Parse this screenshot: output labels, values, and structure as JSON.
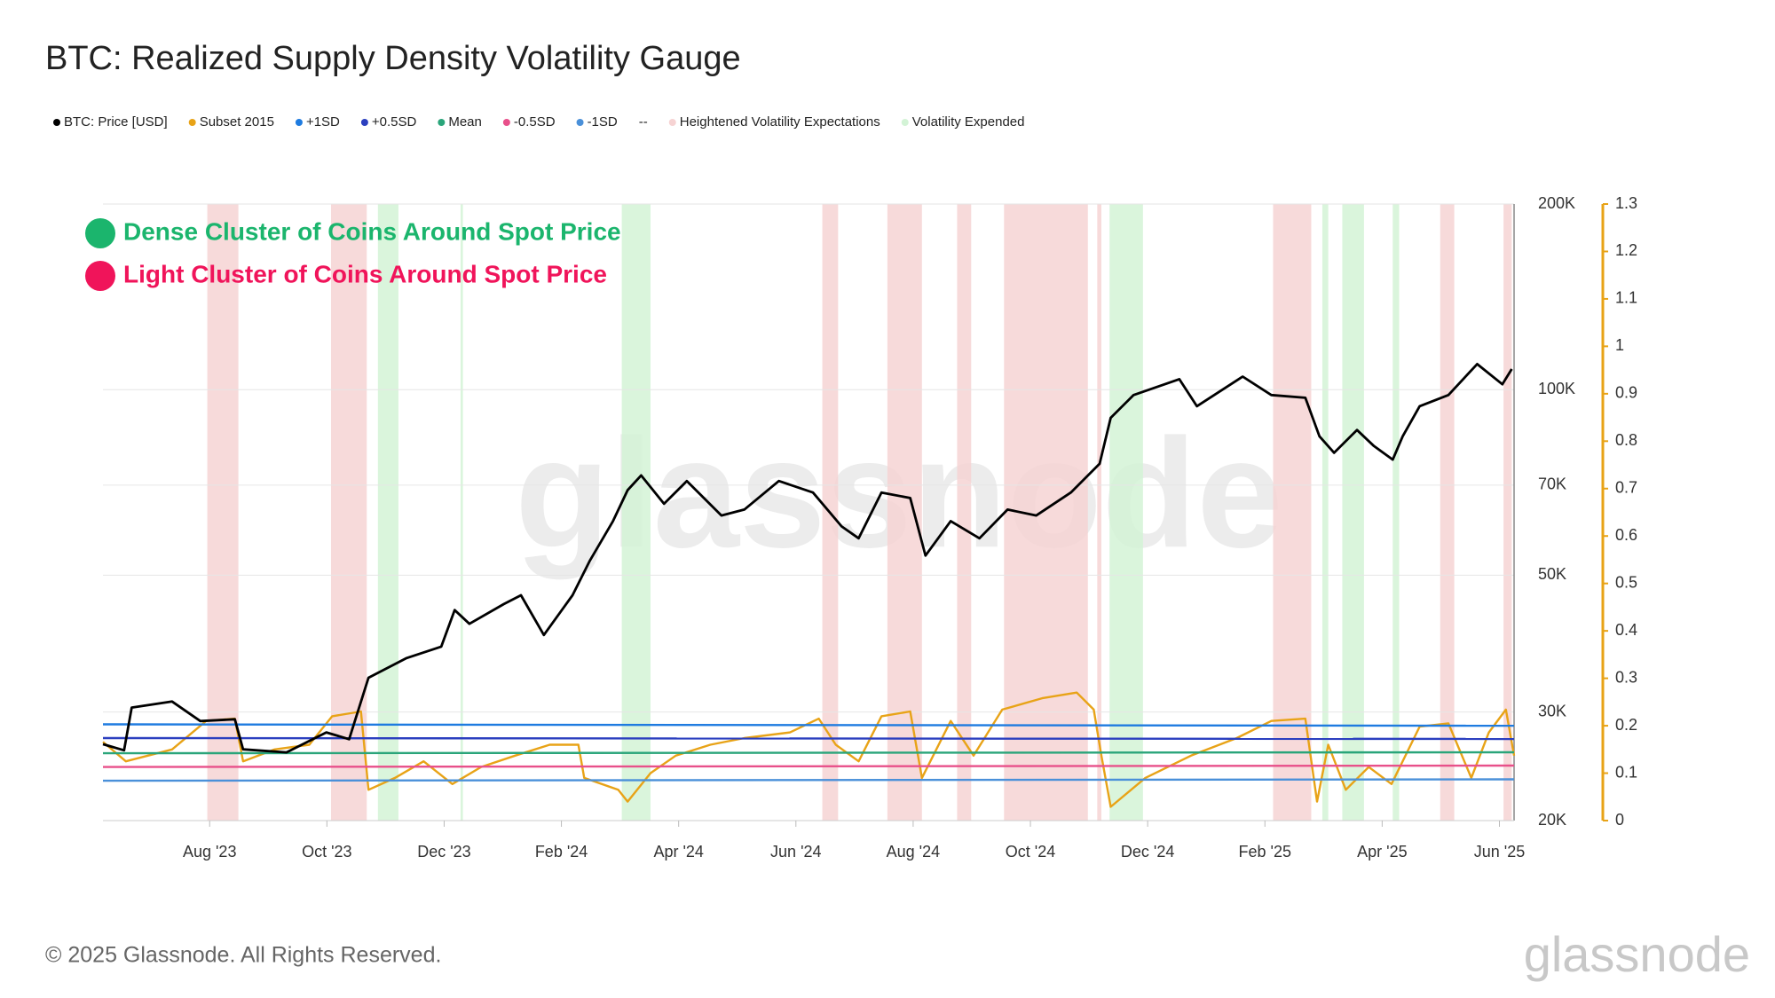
{
  "chart_data": {
    "type": "line",
    "title": "BTC: Realized Supply Density Volatility Gauge",
    "annotations": [
      {
        "text": "Dense Cluster of Coins Around Spot Price",
        "color": "#1bb56d"
      },
      {
        "text": "Light Cluster of Coins Around Spot Price",
        "color": "#f0145a"
      }
    ],
    "xlim": [
      -1.82,
      22.25
    ],
    "xticks": [
      {
        "value": 0,
        "label": "Aug '23"
      },
      {
        "value": 2,
        "label": "Oct '23"
      },
      {
        "value": 4,
        "label": "Dec '23"
      },
      {
        "value": 6,
        "label": "Feb '24"
      },
      {
        "value": 8,
        "label": "Apr '24"
      },
      {
        "value": 10,
        "label": "Jun '24"
      },
      {
        "value": 12,
        "label": "Aug '24"
      },
      {
        "value": 14,
        "label": "Oct '24"
      },
      {
        "value": 16,
        "label": "Dec '24"
      },
      {
        "value": 18,
        "label": "Feb '25"
      },
      {
        "value": 20,
        "label": "Apr '25"
      },
      {
        "value": 22,
        "label": "Jun '25"
      }
    ],
    "ylim": [
      20000,
      200000
    ],
    "log_scale": true,
    "grid": true,
    "yticks": [
      {
        "value": 20000,
        "label": "20K"
      },
      {
        "value": 30000,
        "label": "30K"
      },
      {
        "value": 50000,
        "label": "50K"
      },
      {
        "value": 70000,
        "label": "70K"
      },
      {
        "value": 100000,
        "label": "100K"
      },
      {
        "value": 200000,
        "label": "200K"
      }
    ],
    "y2lim": [
      0,
      1.3
    ],
    "y2ticks": [
      0,
      0.1,
      0.2,
      0.3,
      0.4,
      0.5,
      0.6,
      0.7,
      0.8,
      0.9,
      1,
      1.1,
      1.2,
      1.3
    ],
    "y2_axis_color": "#e8a317",
    "series": [
      {
        "name": "BTC: Price [USD]",
        "color": "#000000",
        "axis": "y",
        "x": [
          -1.82,
          -1.46,
          -1.33,
          -0.64,
          -0.16,
          0.43,
          0.57,
          1.31,
          1.99,
          2.38,
          2.71,
          3.36,
          3.95,
          4.18,
          4.43,
          5.02,
          5.31,
          5.7,
          6.19,
          6.48,
          6.88,
          7.13,
          7.36,
          7.75,
          8.14,
          8.73,
          9.12,
          9.71,
          10.29,
          10.78,
          11.07,
          11.46,
          11.95,
          12.21,
          12.64,
          13.13,
          13.61,
          14.1,
          14.69,
          15.18,
          15.37,
          15.76,
          16.54,
          16.84,
          17.62,
          18.11,
          18.69,
          18.93,
          19.18,
          19.57,
          19.86,
          20.18,
          20.35,
          20.64,
          21.13,
          21.62,
          22.05,
          22.21
        ],
        "values": [
          26600,
          26000,
          30500,
          31200,
          29000,
          29200,
          26100,
          25800,
          27800,
          27100,
          34100,
          36700,
          38300,
          43900,
          41700,
          44900,
          46400,
          40000,
          46400,
          52700,
          61200,
          68700,
          72600,
          65300,
          71100,
          62500,
          63900,
          71100,
          68100,
          60000,
          57400,
          68100,
          66700,
          53800,
          61200,
          57400,
          63900,
          62500,
          68100,
          75800,
          90000,
          98000,
          104000,
          94000,
          105000,
          98000,
          97000,
          84000,
          79000,
          86000,
          81000,
          77000,
          84000,
          94000,
          98000,
          110000,
          102000,
          108000
        ]
      },
      {
        "name": "Subset 2015",
        "color": "#e8a317",
        "axis": "y2",
        "x": [
          -1.82,
          -1.43,
          -0.64,
          -0.06,
          0.43,
          0.57,
          1.11,
          1.7,
          2.09,
          2.58,
          2.71,
          3.16,
          3.65,
          4.14,
          4.63,
          5.21,
          5.8,
          6.29,
          6.39,
          6.97,
          7.13,
          7.52,
          7.95,
          8.54,
          9.12,
          9.9,
          10.39,
          10.68,
          11.07,
          11.46,
          11.95,
          12.15,
          12.64,
          13.03,
          13.52,
          14.2,
          14.79,
          15.08,
          15.21,
          15.37,
          15.96,
          16.74,
          17.52,
          18.11,
          18.69,
          18.89,
          19.08,
          19.38,
          19.77,
          20.16,
          20.64,
          21.13,
          21.52,
          21.82,
          22.11,
          22.25
        ],
        "values": [
          0.166,
          0.125,
          0.15,
          0.21,
          0.215,
          0.125,
          0.15,
          0.16,
          0.22,
          0.23,
          0.065,
          0.09,
          0.125,
          0.077,
          0.113,
          0.137,
          0.16,
          0.16,
          0.09,
          0.065,
          0.04,
          0.1,
          0.137,
          0.16,
          0.174,
          0.186,
          0.215,
          0.16,
          0.125,
          0.22,
          0.23,
          0.09,
          0.21,
          0.137,
          0.234,
          0.258,
          0.27,
          0.234,
          0.137,
          0.029,
          0.09,
          0.137,
          0.174,
          0.21,
          0.215,
          0.04,
          0.16,
          0.065,
          0.113,
          0.077,
          0.198,
          0.205,
          0.09,
          0.186,
          0.234,
          0.137
        ]
      },
      {
        "name": "+1SD",
        "color": "#1e7be0",
        "axis": "y2",
        "x": [
          -1.82,
          22.25
        ],
        "values": [
          0.203,
          0.2
        ]
      },
      {
        "name": "+0.5SD",
        "color": "#2b3fbf",
        "axis": "y2",
        "x": [
          -1.82,
          22.25
        ],
        "values": [
          0.174,
          0.172
        ]
      },
      {
        "name": "Mean",
        "color": "#2aa57a",
        "axis": "y2",
        "x": [
          -1.82,
          22.25
        ],
        "values": [
          0.142,
          0.144
        ]
      },
      {
        "name": "-0.5SD",
        "color": "#e8508a",
        "axis": "y2",
        "x": [
          -1.82,
          22.25
        ],
        "values": [
          0.113,
          0.116
        ]
      },
      {
        "name": "-1SD",
        "color": "#4a90d9",
        "axis": "y2",
        "x": [
          -1.82,
          22.25
        ],
        "values": [
          0.084,
          0.087
        ]
      },
      {
        "name": "--"
      },
      {
        "name": "Heightened Volatility Expectations",
        "color": "#f6d3d3",
        "ranges": [
          [
            -0.04,
            0.49
          ],
          [
            2.07,
            2.68
          ],
          [
            10.45,
            10.72
          ],
          [
            11.56,
            12.15
          ],
          [
            12.75,
            12.99
          ],
          [
            13.55,
            14.98
          ],
          [
            15.14,
            15.21
          ],
          [
            18.14,
            18.79
          ],
          [
            20.99,
            21.23
          ],
          [
            22.07,
            22.21
          ]
        ]
      },
      {
        "name": "Volatility Expended",
        "color": "#d3f3d6",
        "ranges": [
          [
            2.87,
            3.22
          ],
          [
            4.28,
            4.32
          ],
          [
            7.03,
            7.52
          ],
          [
            15.35,
            15.92
          ],
          [
            18.98,
            19.08
          ],
          [
            19.32,
            19.69
          ],
          [
            20.18,
            20.29
          ]
        ]
      }
    ]
  },
  "footer": "© 2025 Glassnode. All Rights Reserved.",
  "watermark": "glassnode"
}
